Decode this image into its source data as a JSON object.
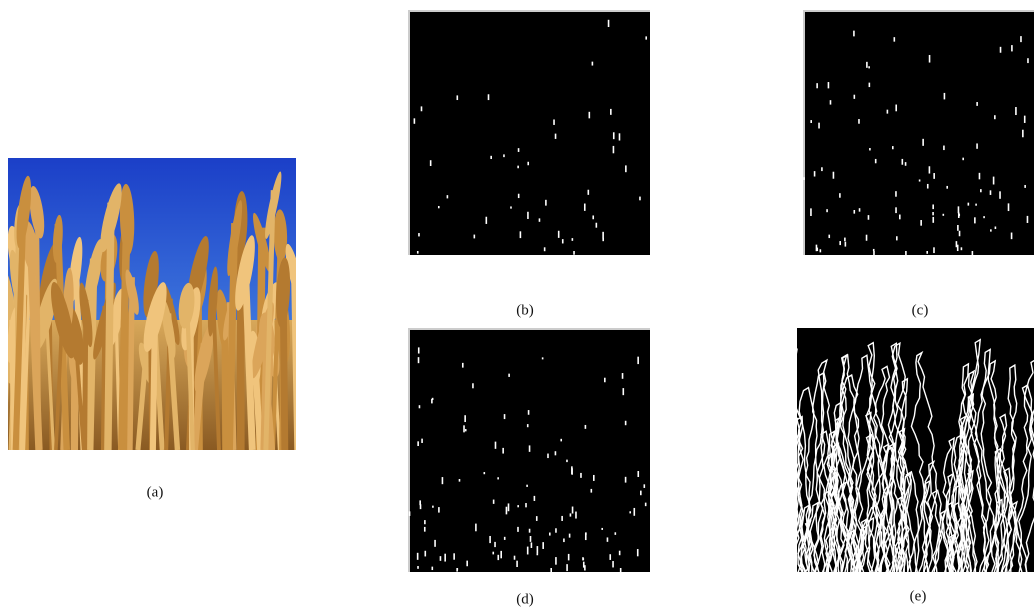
{
  "figure": {
    "panels": [
      {
        "label": "(a)"
      },
      {
        "label": "(b)"
      },
      {
        "label": "(c)"
      },
      {
        "label": "(d)"
      },
      {
        "label": "(e)"
      }
    ]
  }
}
